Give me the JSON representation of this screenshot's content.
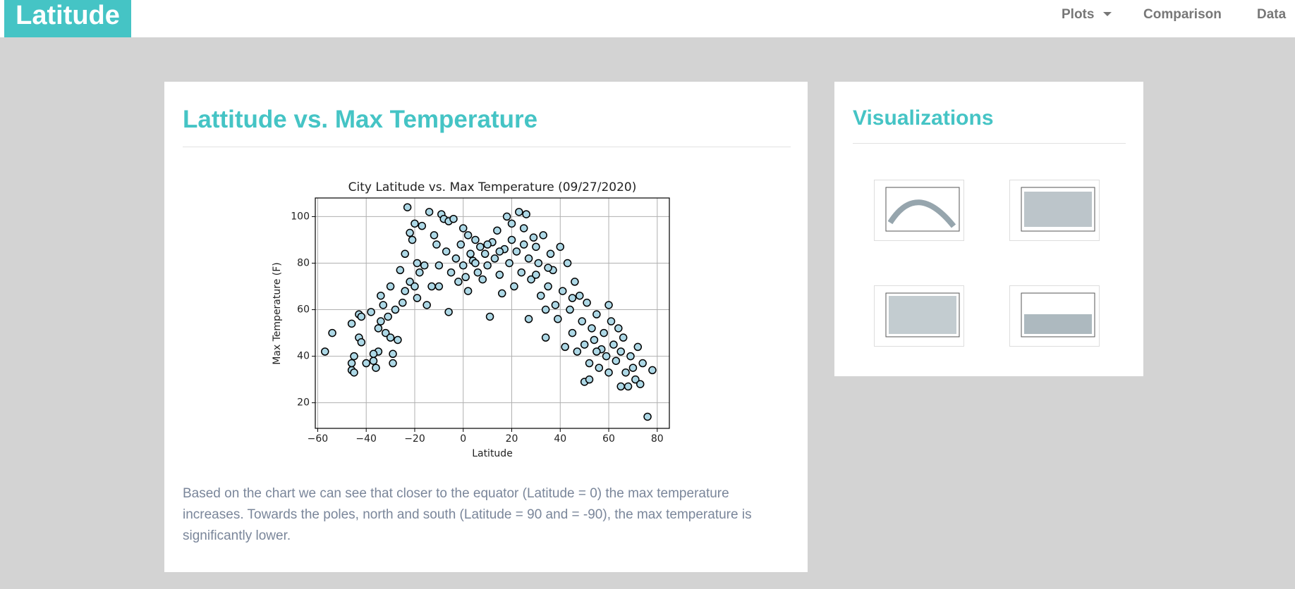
{
  "page": {
    "navbar": {
      "brand": "Latitude",
      "links": [
        "Plots",
        "Comparison",
        "Data"
      ]
    },
    "main": {
      "heading": "Lattitude vs. Max Temperature",
      "description": "Based on the chart we can see that closer to the equator (Latitude = 0) the max temperature increases. Towards the poles, north and south (Latitude = 90 and = -90), the max temperature is significantly lower."
    },
    "sidebar": {
      "heading": "Visualizations"
    }
  },
  "chart_data": {
    "type": "scatter",
    "title": "City Latitude vs. Max Temperature (09/27/2020)",
    "x_label": "Latitude",
    "y_label": "Max Temperature (F)",
    "color": "#add8e6",
    "edge_color": "#000000",
    "grid": true,
    "xlim": [
      -61,
      85
    ],
    "ylim": [
      9,
      108
    ],
    "xticks": [
      {
        "value": -60,
        "label": "−60"
      },
      {
        "value": -40,
        "label": "−40"
      },
      {
        "value": -20,
        "label": "−20"
      },
      0,
      20,
      40,
      60,
      80
    ],
    "yticks": [
      20,
      40,
      60,
      80,
      100
    ],
    "x": [
      -57,
      -54,
      -46,
      -45,
      -46,
      -45,
      -46,
      -43,
      -42,
      -43,
      -42,
      -40,
      -38,
      -37,
      -36,
      -35,
      -37,
      -35,
      -34,
      -34,
      -33,
      -32,
      -31,
      -30,
      -30,
      -29,
      -29,
      -28,
      -27,
      -26,
      -25,
      -24,
      -24,
      -23,
      -22,
      -21,
      -22,
      -20,
      -19,
      -19,
      -18,
      -17,
      -16,
      -15,
      -14,
      -13,
      -12,
      -11,
      -10,
      -9,
      -8,
      -7,
      -6,
      -6,
      -5,
      -4,
      -3,
      -2,
      -1,
      0,
      0,
      1,
      2,
      2,
      3,
      4,
      5,
      6,
      7,
      8,
      9,
      10,
      11,
      12,
      13,
      14,
      15,
      16,
      17,
      18,
      19,
      20,
      20,
      21,
      22,
      23,
      24,
      25,
      26,
      27,
      27,
      28,
      29,
      30,
      31,
      32,
      33,
      34,
      34,
      35,
      36,
      37,
      38,
      39,
      40,
      41,
      42,
      43,
      44,
      45,
      46,
      47,
      48,
      49,
      50,
      50,
      51,
      52,
      52,
      53,
      54,
      55,
      56,
      57,
      58,
      59,
      60,
      60,
      61,
      62,
      63,
      64,
      65,
      65,
      66,
      67,
      68,
      69,
      70,
      71,
      72,
      73,
      74,
      76,
      78,
      -20,
      -10,
      10,
      30,
      45,
      55,
      5,
      15,
      25,
      35
    ],
    "values": [
      42,
      50,
      34,
      33,
      37,
      40,
      54,
      58,
      57,
      48,
      46,
      37,
      59,
      38,
      35,
      42,
      41,
      52,
      55,
      66,
      62,
      50,
      57,
      70,
      48,
      41,
      37,
      60,
      47,
      77,
      63,
      68,
      84,
      104,
      93,
      90,
      72,
      97,
      80,
      65,
      76,
      96,
      79,
      62,
      102,
      70,
      92,
      88,
      79,
      101,
      99,
      85,
      59,
      98,
      76,
      99,
      82,
      72,
      88,
      95,
      79,
      74,
      92,
      68,
      84,
      81,
      90,
      76,
      87,
      73,
      84,
      79,
      57,
      89,
      82,
      94,
      75,
      67,
      86,
      100,
      80,
      97,
      90,
      70,
      85,
      102,
      76,
      95,
      101,
      82,
      56,
      73,
      91,
      87,
      80,
      66,
      92,
      60,
      48,
      70,
      84,
      77,
      62,
      56,
      87,
      68,
      44,
      80,
      60,
      50,
      72,
      42,
      66,
      55,
      29,
      45,
      63,
      37,
      30,
      52,
      47,
      58,
      35,
      43,
      50,
      40,
      62,
      33,
      55,
      45,
      38,
      52,
      27,
      42,
      48,
      33,
      27,
      40,
      35,
      30,
      44,
      28,
      37,
      14,
      34,
      70,
      70,
      88,
      75,
      65,
      42,
      80,
      85,
      88,
      78
    ]
  }
}
